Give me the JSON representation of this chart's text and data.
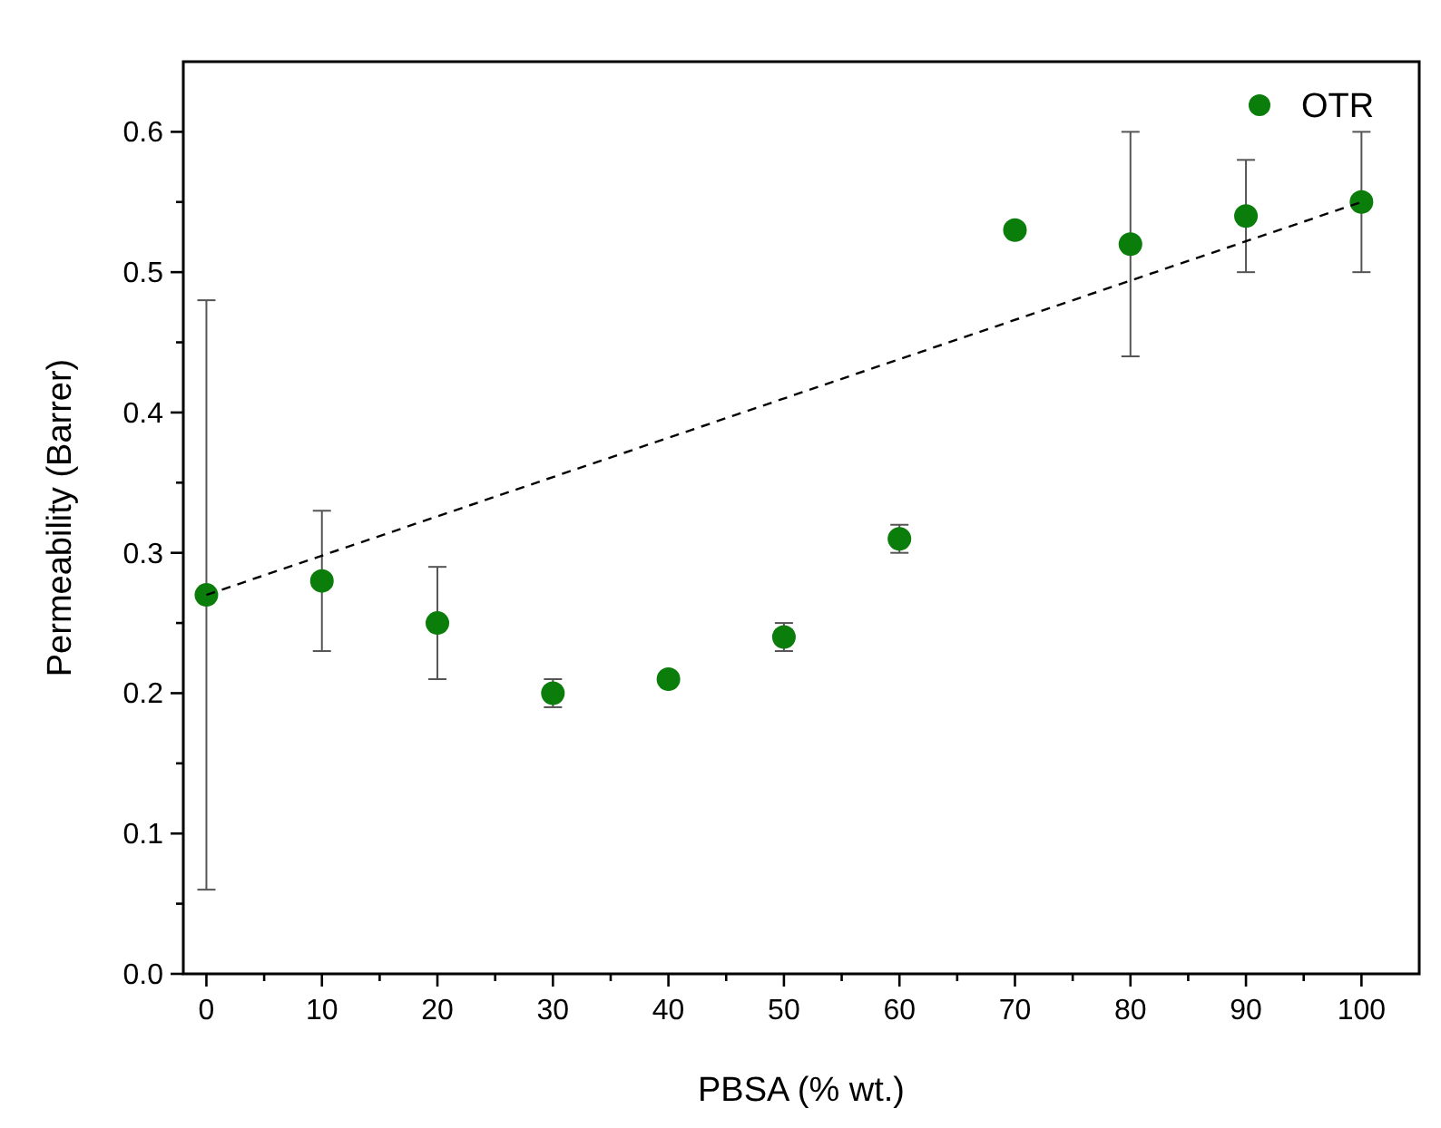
{
  "chart_data": {
    "type": "scatter",
    "xlabel": "PBSA (% wt.)",
    "ylabel": "Permeability (Barrer)",
    "x": [
      0,
      10,
      20,
      30,
      40,
      50,
      60,
      70,
      80,
      90,
      100
    ],
    "series": [
      {
        "name": "OTR",
        "color": "#0a7d0a",
        "values": [
          0.27,
          0.28,
          0.25,
          0.2,
          0.21,
          0.24,
          0.31,
          0.53,
          0.52,
          0.54,
          0.55
        ],
        "errors": [
          [
            0.06,
            0.48
          ],
          [
            0.23,
            0.33
          ],
          [
            0.21,
            0.29
          ],
          [
            0.19,
            0.21
          ],
          null,
          [
            0.23,
            0.25
          ],
          [
            0.3,
            0.32
          ],
          null,
          [
            0.44,
            0.6
          ],
          [
            0.5,
            0.58
          ],
          [
            0.5,
            0.6
          ]
        ],
        "marker": "circle"
      },
      {
        "type": "line",
        "color": "#000000",
        "x": [
          0,
          100
        ],
        "values": [
          0.27,
          0.55
        ],
        "line_style": "dashed"
      }
    ],
    "xlim": [
      -2,
      105
    ],
    "xticks": [
      0,
      {
        "value": 5,
        "label": null
      },
      10,
      {
        "value": 15,
        "label": null
      },
      20,
      {
        "value": 25,
        "label": null
      },
      30,
      {
        "value": 35,
        "label": null
      },
      40,
      {
        "value": 45,
        "label": null
      },
      50,
      {
        "value": 55,
        "label": null
      },
      60,
      {
        "value": 65,
        "label": null
      },
      70,
      {
        "value": 75,
        "label": null
      },
      80,
      {
        "value": 85,
        "label": null
      },
      90,
      {
        "value": 95,
        "label": null
      },
      100
    ],
    "ylim": [
      0,
      0.65
    ],
    "yticks": [
      {
        "value": 0,
        "label": "0.0"
      },
      {
        "value": 0.05,
        "label": null
      },
      0.1,
      {
        "value": 0.15,
        "label": null
      },
      0.2,
      {
        "value": 0.25,
        "label": null
      },
      0.3,
      {
        "value": 0.35,
        "label": null
      },
      0.4,
      {
        "value": 0.45,
        "label": null
      },
      0.5,
      {
        "value": 0.55,
        "label": null
      },
      0.6
    ],
    "legend": "top right",
    "grid": false
  }
}
